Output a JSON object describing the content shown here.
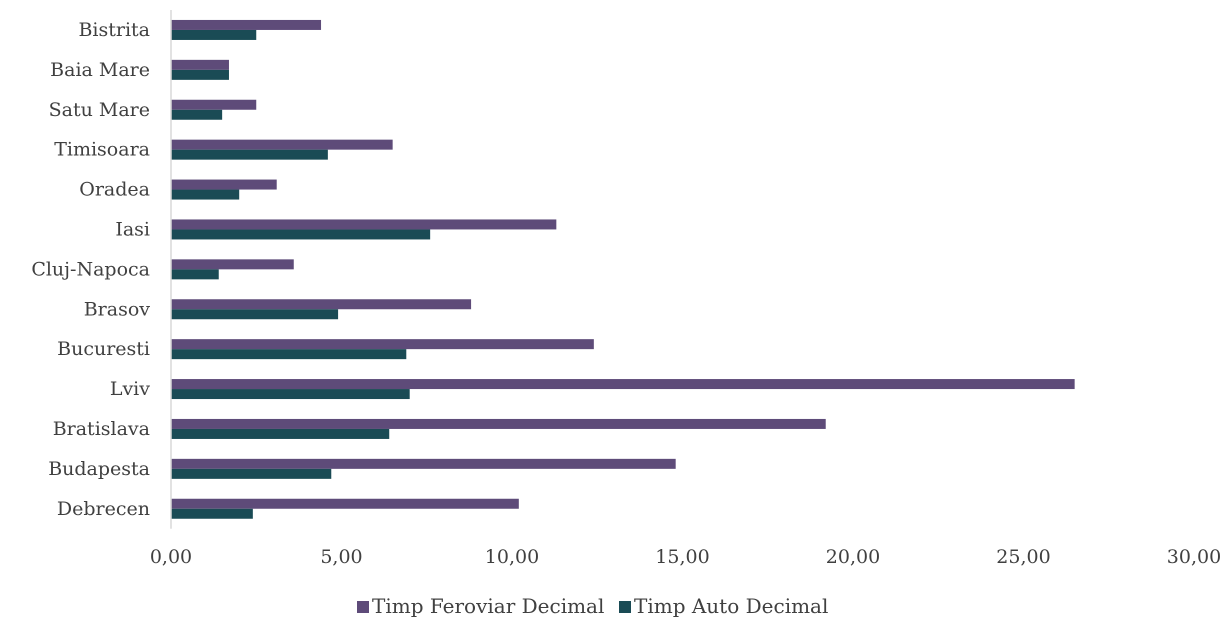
{
  "chart_data": {
    "type": "bar",
    "orientation": "horizontal",
    "title": "",
    "xlabel": "",
    "ylabel": "",
    "categories": [
      "Bistrita",
      "Baia Mare",
      "Satu Mare",
      "Timisoara",
      "Oradea",
      "Iasi",
      "Cluj-Napoca",
      "Brasov",
      "Bucuresti",
      "Lviv",
      "Bratislava",
      "Budapesta",
      "Debrecen"
    ],
    "series": [
      {
        "name": "Timp Feroviar Decimal",
        "color": "#5e4b79",
        "values": [
          4.4,
          1.7,
          2.5,
          6.5,
          3.1,
          11.3,
          3.6,
          8.8,
          12.4,
          26.5,
          19.2,
          14.8,
          10.2
        ]
      },
      {
        "name": "Timp Auto Decimal",
        "color": "#1a4b55",
        "values": [
          2.5,
          1.7,
          1.5,
          4.6,
          2.0,
          7.6,
          1.4,
          4.9,
          6.9,
          7.0,
          6.4,
          4.7,
          2.4
        ]
      }
    ],
    "xlim": [
      0,
      30
    ],
    "xticks": [
      "0,00",
      "5,00",
      "10,00",
      "15,00",
      "20,00",
      "25,00",
      "30,00"
    ],
    "grid": false,
    "legend_position": "bottom"
  }
}
